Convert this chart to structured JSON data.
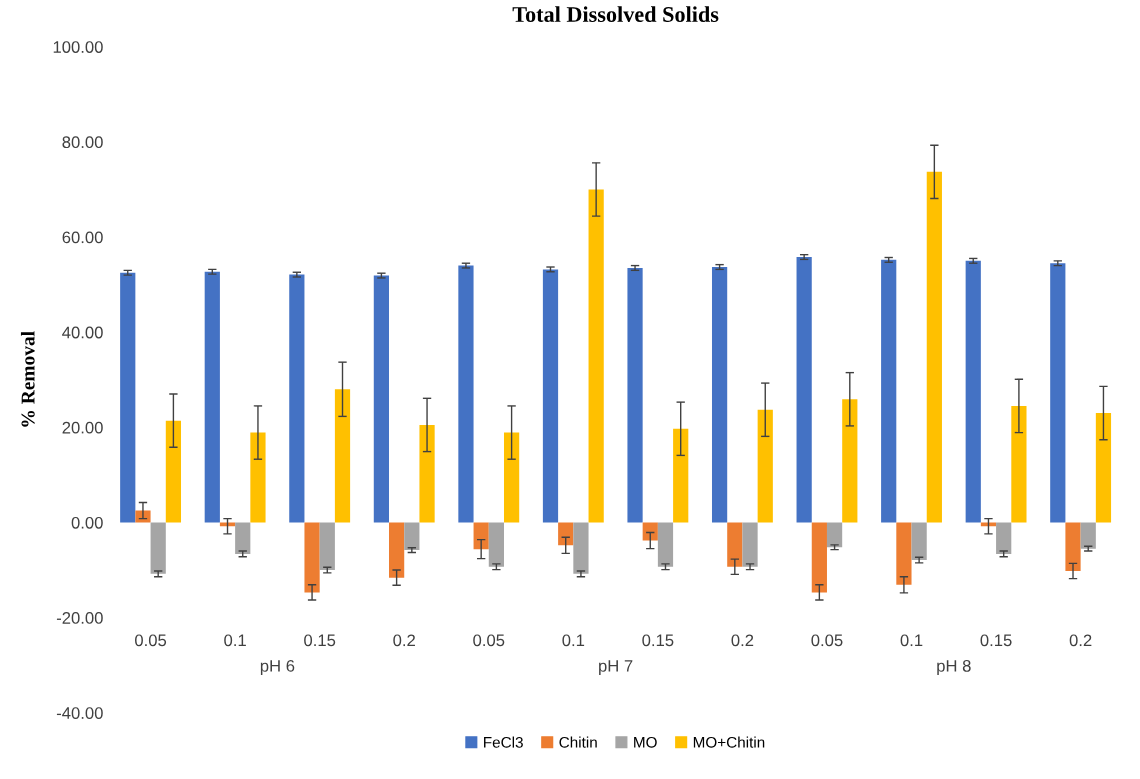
{
  "chart_data": {
    "type": "bar",
    "title": "Total Dissolved Solids",
    "ylabel": "% Removal",
    "categories": [
      "0.05",
      "0.1",
      "0.15",
      "0.2",
      "0.05",
      "0.1",
      "0.15",
      "0.2",
      "0.05",
      "0.1",
      "0.15",
      "0.2"
    ],
    "annotations": [
      "pH 6",
      "pH 7",
      "pH 8"
    ],
    "series": [
      {
        "name": "FeCl3",
        "color": "#4472c4",
        "values": [
          52.5,
          52.7,
          52.1,
          51.9,
          54.0,
          53.2,
          53.5,
          53.7,
          55.8,
          55.2,
          55.0,
          54.5
        ],
        "errors": [
          0.5,
          0.5,
          0.5,
          0.5,
          0.5,
          0.5,
          0.5,
          0.5,
          0.5,
          0.5,
          0.5,
          0.5
        ]
      },
      {
        "name": "Chitin",
        "color": "#ed7d31",
        "values": [
          2.5,
          -0.8,
          -14.7,
          -11.6,
          -5.6,
          -4.8,
          -3.8,
          -9.3,
          -14.7,
          -13.1,
          -0.8,
          -10.2
        ],
        "errors": [
          1.7,
          1.6,
          1.6,
          1.6,
          2.0,
          1.7,
          1.7,
          1.6,
          1.6,
          1.7,
          1.6,
          1.6
        ]
      },
      {
        "name": "MO",
        "color": "#a5a5a5",
        "values": [
          -10.8,
          -6.6,
          -10.0,
          -5.8,
          -9.3,
          -10.8,
          -9.3,
          -9.3,
          -5.2,
          -7.9,
          -6.6,
          -5.5
        ],
        "errors": [
          0.6,
          0.6,
          0.6,
          0.5,
          0.6,
          0.6,
          0.6,
          0.6,
          0.5,
          0.6,
          0.6,
          0.5
        ]
      },
      {
        "name": "MO+Chitin",
        "color": "#ffc000",
        "values": [
          21.4,
          18.9,
          28.0,
          20.5,
          18.9,
          70.0,
          19.7,
          23.7,
          25.9,
          73.7,
          24.5,
          23.0
        ],
        "errors": [
          5.6,
          5.6,
          5.7,
          5.6,
          5.6,
          5.6,
          5.6,
          5.6,
          5.6,
          5.6,
          5.6,
          5.6
        ]
      }
    ],
    "ylim": [
      -40,
      100
    ],
    "yticks": [
      {
        "value": -40,
        "label": "-40.00"
      },
      {
        "value": -20,
        "label": "-20.00"
      },
      {
        "value": 0,
        "label": "0.00"
      },
      {
        "value": 20,
        "label": "20.00"
      },
      {
        "value": 40,
        "label": "40.00"
      },
      {
        "value": 60,
        "label": "60.00"
      },
      {
        "value": 80,
        "label": "80.00"
      },
      {
        "value": 100,
        "label": "100.00"
      }
    ],
    "grid": false,
    "legend": "bottom"
  }
}
